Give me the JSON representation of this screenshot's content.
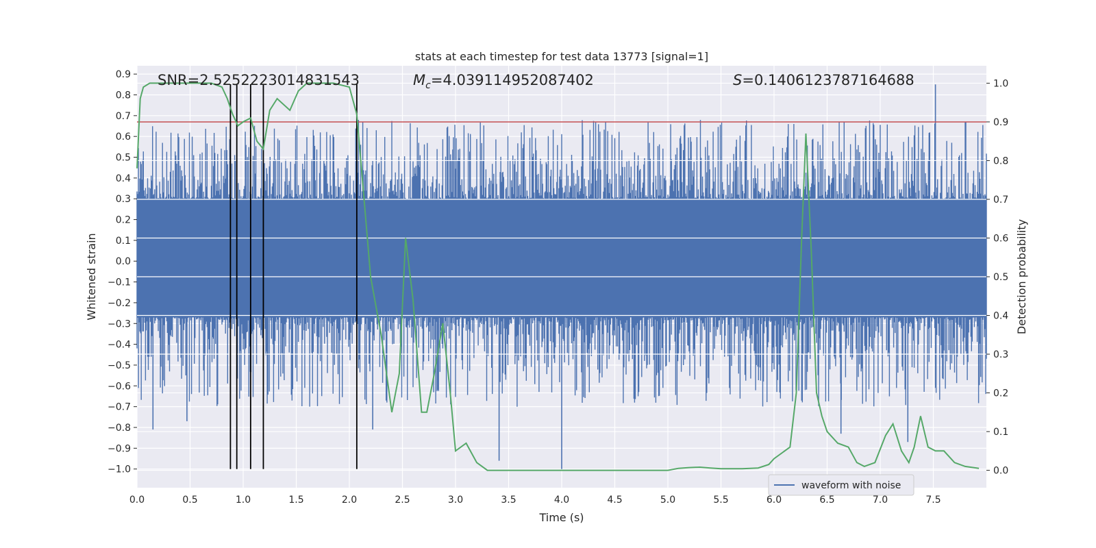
{
  "chart_data": {
    "type": "line",
    "title": "stats at each timestep for test data 13773 [signal=1]",
    "xlabel": "Time (s)",
    "ylabel": "Whitened strain",
    "y2label": "Detection probability",
    "xlim": [
      0.0,
      8.0
    ],
    "ylim": [
      -1.09,
      0.94
    ],
    "y2lim": [
      -0.045,
      1.045
    ],
    "xticks": [
      "0.0",
      "0.5",
      "1.0",
      "1.5",
      "2.0",
      "2.5",
      "3.0",
      "3.5",
      "4.0",
      "4.5",
      "5.0",
      "5.5",
      "6.0",
      "6.5",
      "7.0",
      "7.5"
    ],
    "yticks": [
      "0.9",
      "0.8",
      "0.7",
      "0.6",
      "0.5",
      "0.4",
      "0.3",
      "0.2",
      "0.1",
      "0.0",
      "-0.1",
      "-0.2",
      "-0.3",
      "-0.4",
      "-0.5",
      "-0.6",
      "-0.7",
      "-0.8",
      "-0.9",
      "-1.0"
    ],
    "y2ticks": [
      "0.0",
      "0.1",
      "0.2",
      "0.3",
      "0.4",
      "0.5",
      "0.6",
      "0.7",
      "0.8",
      "0.9",
      "1.0"
    ],
    "grid": true,
    "legend_position": "lower-right",
    "annotations": {
      "snr_text": "SNR=2.5252223014831543",
      "mc_symbol": "M",
      "mc_sub": "c",
      "mc_value": "=4.039114952087402",
      "s_symbol": "S",
      "s_value": "=0.1406123787164688"
    },
    "threshold": {
      "y2": 0.9,
      "color": "#c44e52"
    },
    "vertical_lines": [
      0.88,
      0.94,
      1.07,
      1.19,
      2.07
    ],
    "vertical_line_ymin": -1.0,
    "series": [
      {
        "name": "waveform with noise",
        "color": "#4c72b0",
        "axis": "left",
        "x_range": [
          0.0,
          8.0
        ],
        "envelope_core": [
          -0.27,
          0.3
        ],
        "peak_max": 0.85,
        "peak_min": -1.0,
        "notable_spikes": [
          {
            "x": 7.52,
            "y": 0.85
          },
          {
            "x": 4.0,
            "y": -1.0
          },
          {
            "x": 3.41,
            "y": -0.96
          },
          {
            "x": 0.15,
            "y": -0.81
          },
          {
            "x": 0.47,
            "y": -0.77
          },
          {
            "x": 2.22,
            "y": -0.81
          },
          {
            "x": 6.63,
            "y": -0.83
          },
          {
            "x": 7.26,
            "y": -0.87
          }
        ]
      },
      {
        "name": "detection",
        "color": "#55a868",
        "axis": "right",
        "x": [
          0.0,
          0.03,
          0.06,
          0.12,
          0.2,
          0.3,
          0.5,
          0.7,
          0.8,
          0.85,
          0.9,
          0.95,
          1.0,
          1.07,
          1.13,
          1.19,
          1.25,
          1.32,
          1.44,
          1.52,
          1.6,
          1.7,
          1.85,
          2.0,
          2.07,
          2.13,
          2.2,
          2.3,
          2.4,
          2.47,
          2.53,
          2.6,
          2.68,
          2.73,
          2.8,
          2.88,
          2.95,
          3.0,
          3.1,
          3.2,
          3.3,
          3.5,
          3.8,
          4.0,
          4.3,
          4.6,
          4.8,
          5.0,
          5.1,
          5.2,
          5.3,
          5.4,
          5.5,
          5.7,
          5.85,
          5.95,
          6.0,
          6.15,
          6.21,
          6.26,
          6.3,
          6.35,
          6.4,
          6.45,
          6.5,
          6.6,
          6.7,
          6.78,
          6.85,
          6.95,
          7.05,
          7.12,
          7.2,
          7.27,
          7.32,
          7.38,
          7.45,
          7.52,
          7.6,
          7.7,
          7.8,
          7.93
        ],
        "y": [
          0.78,
          0.96,
          0.99,
          1.0,
          1.0,
          1.0,
          1.0,
          1.0,
          0.99,
          0.96,
          0.92,
          0.89,
          0.9,
          0.91,
          0.85,
          0.83,
          0.93,
          0.96,
          0.93,
          0.98,
          1.0,
          1.0,
          1.0,
          0.99,
          0.92,
          0.73,
          0.5,
          0.35,
          0.15,
          0.25,
          0.6,
          0.44,
          0.15,
          0.15,
          0.25,
          0.38,
          0.2,
          0.05,
          0.07,
          0.02,
          0.0,
          0.0,
          0.0,
          0.0,
          0.0,
          0.0,
          0.0,
          0.0,
          0.005,
          0.007,
          0.008,
          0.006,
          0.004,
          0.004,
          0.006,
          0.015,
          0.03,
          0.06,
          0.2,
          0.6,
          0.87,
          0.57,
          0.2,
          0.14,
          0.1,
          0.07,
          0.06,
          0.02,
          0.01,
          0.02,
          0.09,
          0.12,
          0.05,
          0.02,
          0.06,
          0.14,
          0.06,
          0.05,
          0.05,
          0.02,
          0.01,
          0.005
        ]
      }
    ]
  }
}
